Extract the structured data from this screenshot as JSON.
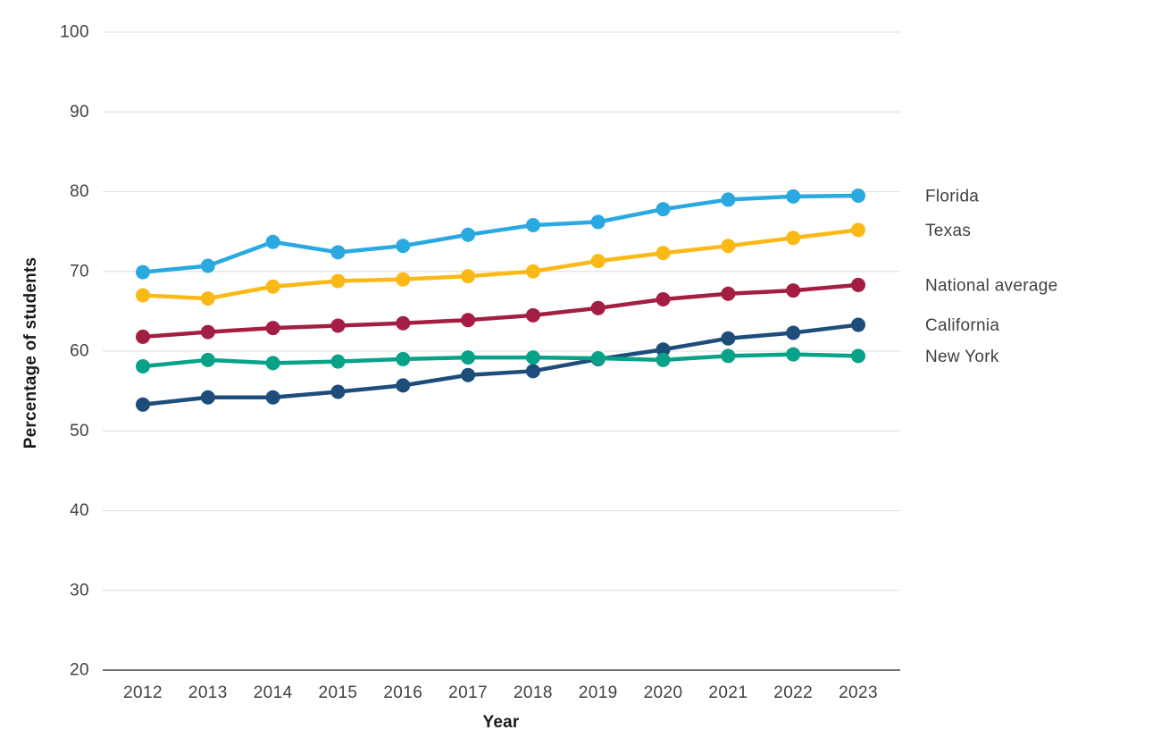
{
  "chart_data": {
    "type": "line",
    "title": "",
    "xlabel": "Year",
    "ylabel": "Percentage of students",
    "x": [
      "2012",
      "2013",
      "2014",
      "2015",
      "2016",
      "2017",
      "2018",
      "2019",
      "2020",
      "2021",
      "2022",
      "2023"
    ],
    "ylim": [
      20,
      100
    ],
    "yticks": [
      20,
      30,
      40,
      50,
      60,
      70,
      80,
      90,
      100
    ],
    "grid": "horizontal-light-gray",
    "legend_position": "right-of-line-ends",
    "series": [
      {
        "name": "Florida",
        "color": "#29A9E0",
        "values": [
          69.9,
          70.7,
          73.7,
          72.4,
          73.2,
          74.6,
          75.8,
          76.2,
          77.8,
          79.0,
          79.4,
          79.5
        ]
      },
      {
        "name": "Texas",
        "color": "#FBB917",
        "values": [
          67.0,
          66.6,
          68.1,
          68.8,
          69.0,
          69.4,
          70.0,
          71.3,
          72.3,
          73.2,
          74.2,
          75.2
        ]
      },
      {
        "name": "National average",
        "color": "#A41E44",
        "values": [
          61.8,
          62.4,
          62.9,
          63.2,
          63.5,
          63.9,
          64.5,
          65.4,
          66.5,
          67.2,
          67.6,
          68.3
        ]
      },
      {
        "name": "California",
        "color": "#1E4D7C",
        "values": [
          53.3,
          54.2,
          54.2,
          54.9,
          55.7,
          57.0,
          57.5,
          59.0,
          60.2,
          61.6,
          62.3,
          63.3
        ]
      },
      {
        "name": "New York",
        "color": "#07A287",
        "values": [
          58.1,
          58.9,
          58.5,
          58.7,
          59.0,
          59.2,
          59.2,
          59.1,
          58.9,
          59.4,
          59.6,
          59.4
        ]
      }
    ],
    "colors": {
      "background": "#ffffff",
      "gridline": "#E3E3E3",
      "axis_line": "#414042",
      "tick_label": "#414042",
      "axis_title": "#1a1a1a",
      "legend_label": "#414042"
    }
  }
}
